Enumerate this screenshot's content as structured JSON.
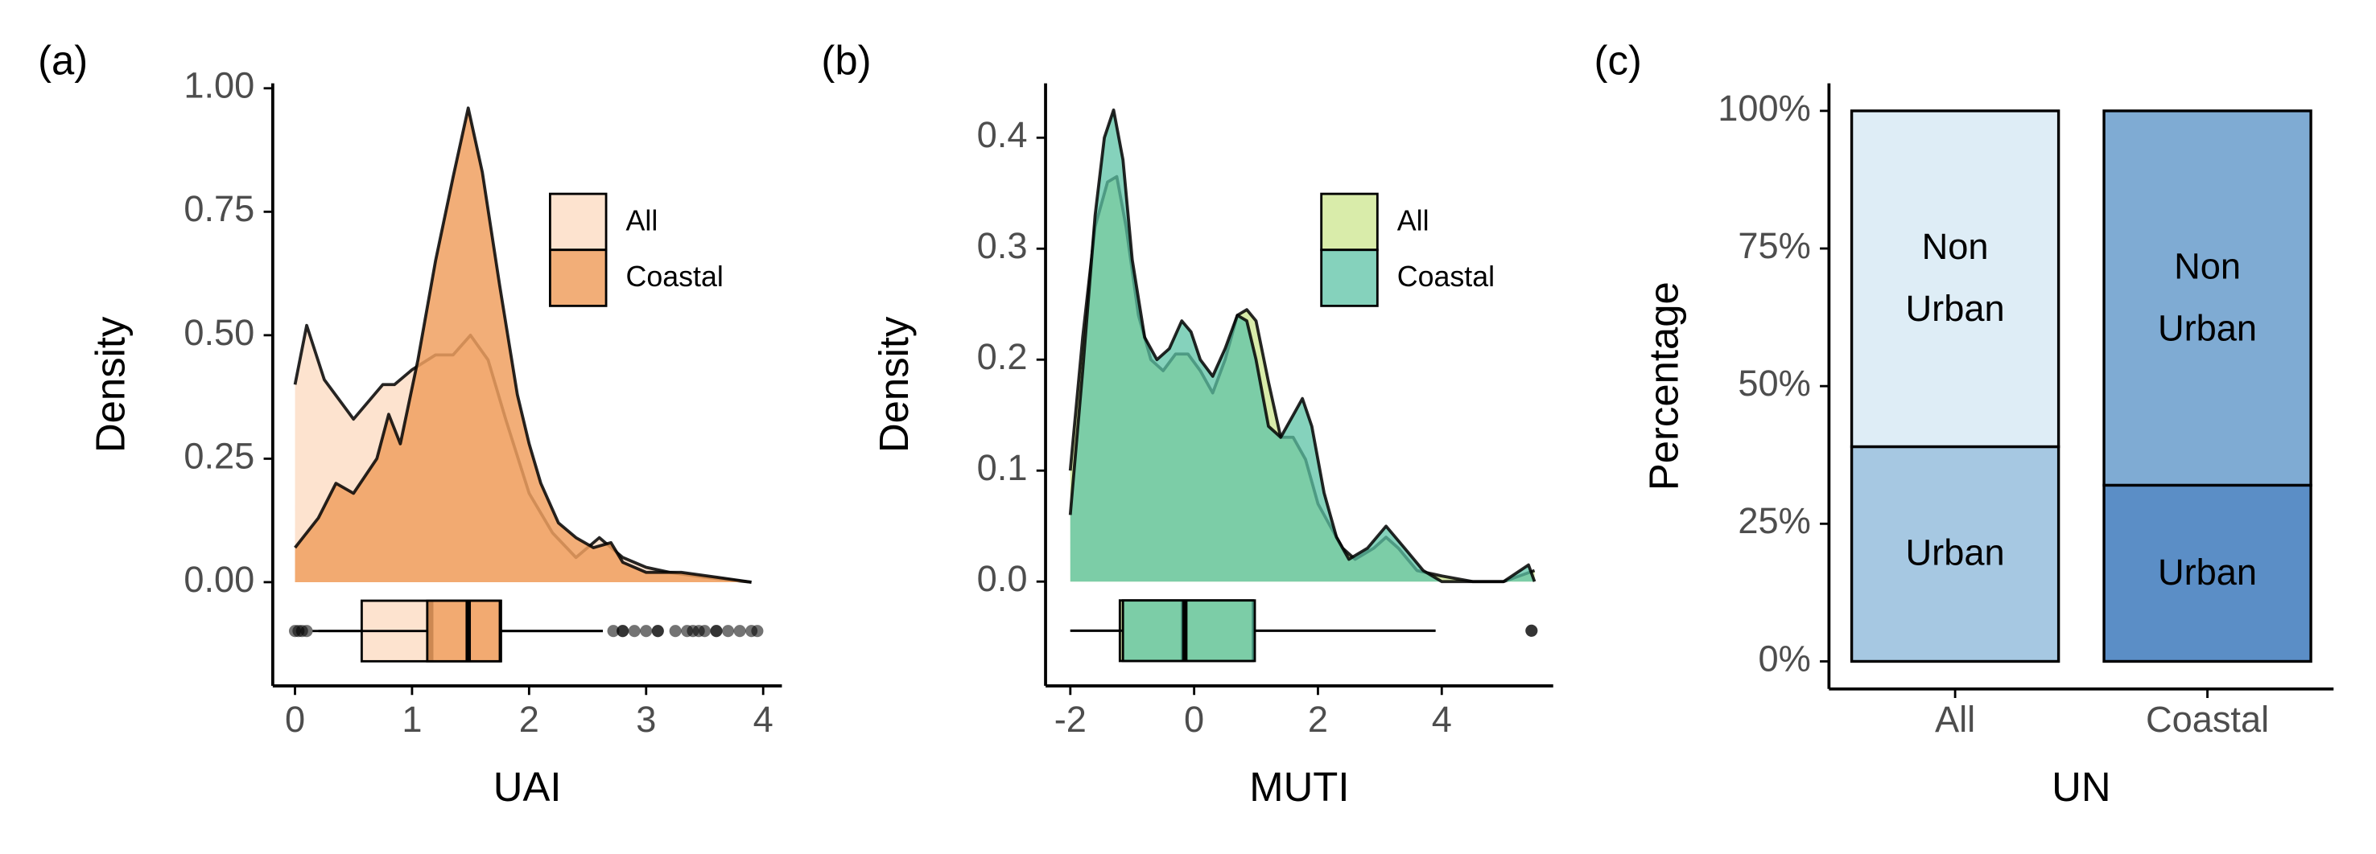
{
  "chart_data": [
    {
      "type": "density",
      "title": "(a)",
      "x_label": "UAI",
      "y_label": "Density",
      "xlim": [
        -0.19,
        4.16
      ],
      "ylim": [
        -0.21,
        1.01
      ],
      "xticks": [
        0,
        1,
        2,
        3,
        4
      ],
      "yticks": [
        {
          "value": 0,
          "label": "0.00"
        },
        0.25,
        {
          "value": 0.5,
          "label": "0.50"
        },
        0.75,
        {
          "value": 1,
          "label": "1.00"
        }
      ],
      "legend_position": "top-right",
      "series": [
        {
          "name": "All",
          "color": "#fde3cf",
          "opacity": 1,
          "x": [
            0,
            0.1,
            0.25,
            0.5,
            0.75,
            0.85,
            1.0,
            1.2,
            1.35,
            1.5,
            1.65,
            1.8,
            2.0,
            2.2,
            2.4,
            2.6,
            2.8,
            3.0,
            3.2,
            3.5,
            3.9
          ],
          "values": [
            0.4,
            0.52,
            0.41,
            0.33,
            0.4,
            0.4,
            0.43,
            0.46,
            0.46,
            0.5,
            0.45,
            0.33,
            0.18,
            0.1,
            0.05,
            0.09,
            0.05,
            0.03,
            0.02,
            0.01,
            0
          ],
          "box": {
            "min": 0.15,
            "q1": 0.57,
            "median": 1.16,
            "q3": 1.76,
            "max": 2.63,
            "outliers": [
              0,
              0.03,
              0.06,
              0.1,
              2.72,
              2.8,
              2.9,
              3.0,
              3.1,
              3.25,
              3.35,
              3.45,
              3.5,
              3.6,
              3.7,
              3.8,
              3.9
            ]
          }
        },
        {
          "name": "Coastal",
          "color": "#f0a060",
          "opacity": 0.85,
          "x": [
            0,
            0.2,
            0.35,
            0.5,
            0.7,
            0.8,
            0.9,
            1.05,
            1.2,
            1.35,
            1.48,
            1.6,
            1.75,
            1.9,
            2.0,
            2.1,
            2.25,
            2.4,
            2.55,
            2.7,
            2.8,
            3.0,
            3.3,
            3.6,
            3.9
          ],
          "values": [
            0.07,
            0.13,
            0.2,
            0.18,
            0.25,
            0.34,
            0.28,
            0.45,
            0.65,
            0.82,
            0.96,
            0.83,
            0.6,
            0.38,
            0.28,
            0.2,
            0.12,
            0.09,
            0.07,
            0.08,
            0.04,
            0.02,
            0.02,
            0.01,
            0
          ],
          "box": {
            "min": 0.2,
            "q1": 1.13,
            "median": 1.48,
            "q3": 1.75,
            "max": 2.63,
            "outliers": [
              2.8,
              3.1,
              3.4,
              3.6,
              3.95
            ]
          }
        }
      ]
    },
    {
      "type": "density",
      "title": "(b)",
      "x_label": "MUTI",
      "y_label": "Density",
      "xlim": [
        -2.4,
        5.8
      ],
      "ylim": [
        -0.094,
        0.449
      ],
      "xticks": [
        -2,
        0,
        2,
        4
      ],
      "yticks": [
        {
          "value": 0,
          "label": "0.0"
        },
        0.1,
        0.2,
        0.3,
        0.4
      ],
      "legend_position": "top-right",
      "series": [
        {
          "name": "All",
          "color": "#d9ecaa",
          "opacity": 1,
          "x": [
            -2,
            -1.8,
            -1.6,
            -1.4,
            -1.25,
            -1.1,
            -0.9,
            -0.7,
            -0.5,
            -0.3,
            -0.1,
            0.1,
            0.3,
            0.5,
            0.7,
            0.85,
            1.0,
            1.2,
            1.4,
            1.6,
            1.8,
            2.0,
            2.2,
            2.4,
            2.6,
            2.9,
            3.1,
            3.3,
            3.6,
            4.0,
            4.5,
            5.0,
            5.5
          ],
          "values": [
            0.1,
            0.22,
            0.32,
            0.36,
            0.365,
            0.32,
            0.24,
            0.2,
            0.19,
            0.205,
            0.205,
            0.19,
            0.17,
            0.2,
            0.24,
            0.245,
            0.235,
            0.18,
            0.13,
            0.13,
            0.11,
            0.07,
            0.05,
            0.03,
            0.02,
            0.03,
            0.04,
            0.03,
            0.01,
            0.005,
            0,
            0,
            0.01
          ],
          "box": {
            "min": -2.0,
            "q1": -1.2,
            "median": -0.17,
            "q3": 0.95,
            "max": 3.9,
            "outliers": [
              5.45
            ]
          }
        },
        {
          "name": "Coastal",
          "color": "#5cc3a5",
          "opacity": 0.75,
          "x": [
            -2,
            -1.8,
            -1.6,
            -1.45,
            -1.3,
            -1.15,
            -1.0,
            -0.8,
            -0.6,
            -0.4,
            -0.2,
            -0.05,
            0.1,
            0.3,
            0.5,
            0.7,
            0.85,
            1.0,
            1.2,
            1.4,
            1.6,
            1.75,
            1.9,
            2.1,
            2.3,
            2.5,
            2.8,
            3.1,
            3.4,
            3.7,
            4.0,
            4.5,
            5.0,
            5.4,
            5.5
          ],
          "values": [
            0.06,
            0.19,
            0.33,
            0.4,
            0.425,
            0.38,
            0.29,
            0.22,
            0.2,
            0.21,
            0.235,
            0.225,
            0.2,
            0.185,
            0.21,
            0.24,
            0.235,
            0.2,
            0.14,
            0.13,
            0.15,
            0.165,
            0.14,
            0.08,
            0.04,
            0.02,
            0.03,
            0.05,
            0.03,
            0.01,
            0,
            0,
            0,
            0.015,
            0
          ],
          "box": {
            "min": -2.0,
            "q1": -1.15,
            "median": -0.15,
            "q3": 0.98,
            "max": 3.9,
            "outliers": [
              5.45
            ]
          }
        }
      ]
    },
    {
      "type": "stacked_bar",
      "title": "(c)",
      "x_label": "UN",
      "y_label": "Percentage",
      "categories": [
        "All",
        "Coastal"
      ],
      "ylim": [
        -5,
        105
      ],
      "yticks": [
        {
          "value": 0,
          "label": "0%"
        },
        {
          "value": 25,
          "label": "25%"
        },
        {
          "value": 50,
          "label": "50%"
        },
        {
          "value": 75,
          "label": "75%"
        },
        {
          "value": 100,
          "label": "100%"
        }
      ],
      "series": [
        {
          "name": "Urban",
          "colors": [
            "#a6c8e2",
            "#5b8ec6"
          ],
          "values": [
            39,
            32
          ]
        },
        {
          "name": "Non Urban",
          "colors": [
            "#deedf6",
            "#7fabd3"
          ],
          "values": [
            61,
            68
          ]
        }
      ]
    }
  ]
}
